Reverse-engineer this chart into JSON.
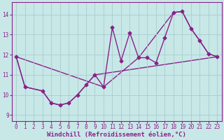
{
  "xlabel": "Windchill (Refroidissement éolien,°C)",
  "xlim": [
    -0.5,
    23.5
  ],
  "ylim": [
    8.7,
    14.6
  ],
  "yticks": [
    9,
    10,
    11,
    12,
    13,
    14
  ],
  "xticks": [
    0,
    1,
    2,
    3,
    4,
    5,
    6,
    7,
    8,
    9,
    10,
    11,
    12,
    13,
    14,
    15,
    16,
    17,
    18,
    19,
    20,
    21,
    22,
    23
  ],
  "background_color": "#c8e8e8",
  "grid_color": "#a8cccc",
  "line_color": "#882288",
  "series1_x": [
    0,
    1,
    3,
    4,
    5,
    6,
    7,
    8,
    9,
    10,
    11,
    12,
    13,
    14,
    15,
    16,
    17,
    18,
    19,
    20,
    21,
    22,
    23
  ],
  "series1_y": [
    11.9,
    10.4,
    10.2,
    9.6,
    9.5,
    9.6,
    10.0,
    10.5,
    11.0,
    10.4,
    13.35,
    11.7,
    13.1,
    11.85,
    11.85,
    11.6,
    12.85,
    14.1,
    14.15,
    13.3,
    12.7,
    12.05,
    11.9
  ],
  "series2_x": [
    0,
    1,
    3,
    4,
    5,
    6,
    7,
    8,
    9,
    23
  ],
  "series2_y": [
    11.9,
    10.4,
    10.2,
    9.6,
    9.5,
    9.6,
    10.0,
    10.5,
    11.0,
    11.9
  ],
  "series3_x": [
    0,
    10,
    14,
    18,
    19,
    20,
    21,
    22,
    23
  ],
  "series3_y": [
    11.9,
    10.4,
    11.85,
    14.1,
    14.15,
    13.3,
    12.7,
    12.05,
    11.9
  ],
  "marker": "D",
  "markersize": 2.5,
  "linewidth": 1.0,
  "xlabel_fontsize": 6.5,
  "tick_fontsize": 5.5
}
